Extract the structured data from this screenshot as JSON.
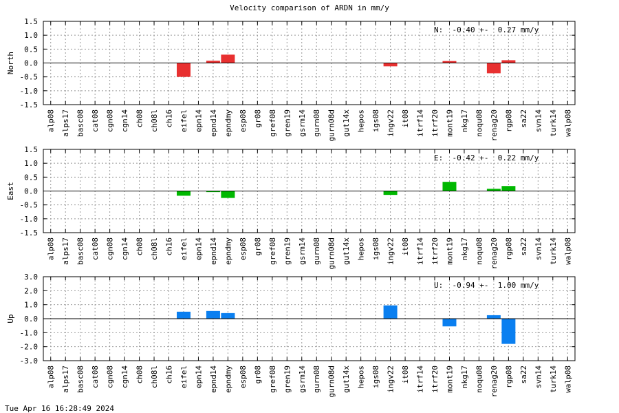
{
  "title": "Velocity comparison of ARDN in mm/y",
  "footer": "Tue Apr 16 16:28:49 2024",
  "chart_data": [
    {
      "type": "bar",
      "ylabel": "North",
      "ylim": [
        -1.5,
        1.5
      ],
      "yticks": [
        "1.5",
        "1.0",
        "0.5",
        "0.0",
        "-0.5",
        "-1.0",
        "-1.5"
      ],
      "summary": "N:  -0.40 +-  0.27 mm/y",
      "color": "#e83030",
      "grid": true,
      "categories": [
        "alp08",
        "alps17",
        "basc08",
        "cat08",
        "cgn08",
        "cgn14",
        "ch08",
        "ch08l",
        "ch16",
        "eifel",
        "epn14",
        "epnd14",
        "epndmy",
        "esp08",
        "gr08",
        "gref08",
        "gren19",
        "gsrm14",
        "gurn08",
        "gurn08d",
        "gut14x",
        "hepos",
        "igs08",
        "ingv22",
        "it08",
        "itrf14",
        "itrf20",
        "mont19",
        "nkg17",
        "noqu08",
        "renag20",
        "rgp08",
        "sa22",
        "svn14",
        "turk14",
        "walp08"
      ],
      "values": [
        null,
        null,
        null,
        null,
        null,
        null,
        null,
        null,
        null,
        -0.5,
        null,
        0.08,
        0.3,
        null,
        null,
        null,
        null,
        null,
        null,
        null,
        null,
        null,
        null,
        -0.12,
        null,
        null,
        null,
        0.07,
        null,
        null,
        -0.37,
        0.1,
        null,
        null,
        null,
        null
      ]
    },
    {
      "type": "bar",
      "ylabel": "East",
      "ylim": [
        -1.5,
        1.5
      ],
      "yticks": [
        "1.5",
        "1.0",
        "0.5",
        "0.0",
        "-0.5",
        "-1.0",
        "-1.5"
      ],
      "summary": "E:  -0.42 +-  0.22 mm/y",
      "color": "#00b800",
      "grid": true,
      "categories": [
        "alp08",
        "alps17",
        "basc08",
        "cat08",
        "cgn08",
        "cgn14",
        "ch08",
        "ch08l",
        "ch16",
        "eifel",
        "epn14",
        "epnd14",
        "epndmy",
        "esp08",
        "gr08",
        "gref08",
        "gren19",
        "gsrm14",
        "gurn08",
        "gurn08d",
        "gut14x",
        "hepos",
        "igs08",
        "ingv22",
        "it08",
        "itrf14",
        "itrf20",
        "mont19",
        "nkg17",
        "noqu08",
        "renag20",
        "rgp08",
        "sa22",
        "svn14",
        "turk14",
        "walp08"
      ],
      "values": [
        null,
        null,
        null,
        null,
        null,
        null,
        null,
        null,
        null,
        -0.17,
        null,
        -0.04,
        -0.25,
        null,
        null,
        null,
        null,
        null,
        null,
        null,
        null,
        null,
        null,
        -0.14,
        null,
        null,
        null,
        0.33,
        null,
        null,
        0.08,
        0.18,
        null,
        null,
        null,
        null
      ]
    },
    {
      "type": "bar",
      "ylabel": "Up",
      "ylim": [
        -3.0,
        3.0
      ],
      "yticks": [
        "3.0",
        "2.0",
        "1.0",
        "0.0",
        "-1.0",
        "-2.0",
        "-3.0"
      ],
      "summary": "U:  -0.94 +-  1.00 mm/y",
      "color": "#0a7ff0",
      "grid": true,
      "categories": [
        "alp08",
        "alps17",
        "basc08",
        "cat08",
        "cgn08",
        "cgn14",
        "ch08",
        "ch08l",
        "ch16",
        "eifel",
        "epn14",
        "epnd14",
        "epndmy",
        "esp08",
        "gr08",
        "gref08",
        "gren19",
        "gsrm14",
        "gurn08",
        "gurn08d",
        "gut14x",
        "hepos",
        "igs08",
        "ingv22",
        "it08",
        "itrf14",
        "itrf20",
        "mont19",
        "nkg17",
        "noqu08",
        "renag20",
        "rgp08",
        "sa22",
        "svn14",
        "turk14",
        "walp08"
      ],
      "values": [
        null,
        null,
        null,
        null,
        null,
        null,
        null,
        null,
        null,
        0.5,
        null,
        0.55,
        0.4,
        null,
        null,
        null,
        null,
        null,
        null,
        null,
        null,
        null,
        null,
        0.95,
        null,
        null,
        null,
        -0.55,
        null,
        null,
        0.25,
        -1.8,
        null,
        null,
        null,
        null
      ]
    }
  ]
}
